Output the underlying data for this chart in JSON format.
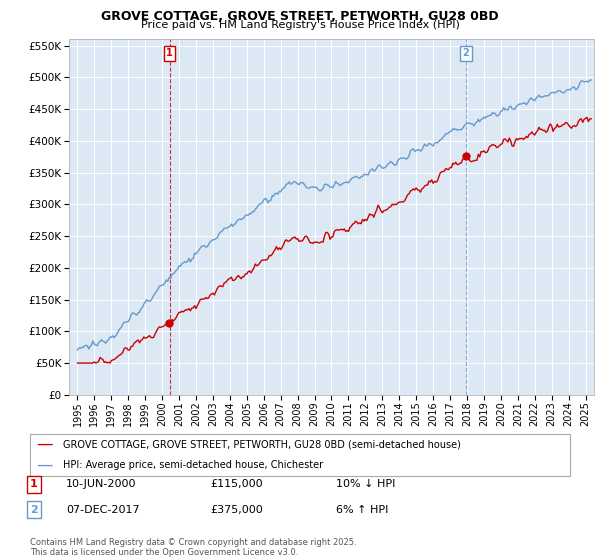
{
  "title": "GROVE COTTAGE, GROVE STREET, PETWORTH, GU28 0BD",
  "subtitle": "Price paid vs. HM Land Registry's House Price Index (HPI)",
  "legend_line1": "GROVE COTTAGE, GROVE STREET, PETWORTH, GU28 0BD (semi-detached house)",
  "legend_line2": "HPI: Average price, semi-detached house, Chichester",
  "annotation1_num": "1",
  "annotation1_date": "10-JUN-2000",
  "annotation1_price": "£115,000",
  "annotation1_hpi": "10% ↓ HPI",
  "annotation2_num": "2",
  "annotation2_date": "07-DEC-2017",
  "annotation2_price": "£375,000",
  "annotation2_hpi": "6% ↑ HPI",
  "footnote": "Contains HM Land Registry data © Crown copyright and database right 2025.\nThis data is licensed under the Open Government Licence v3.0.",
  "vline1_x": 2000.44,
  "vline2_x": 2017.93,
  "sale1_y": 115000,
  "sale2_y": 375000,
  "red_color": "#cc0000",
  "blue_color": "#6699cc",
  "vline1_color": "#cc0000",
  "vline2_color": "#6699cc",
  "chart_bg": "#dce9f5",
  "ylim": [
    0,
    560000
  ],
  "xlim": [
    1994.5,
    2025.5
  ],
  "background_color": "#ffffff",
  "grid_color": "#ffffff"
}
